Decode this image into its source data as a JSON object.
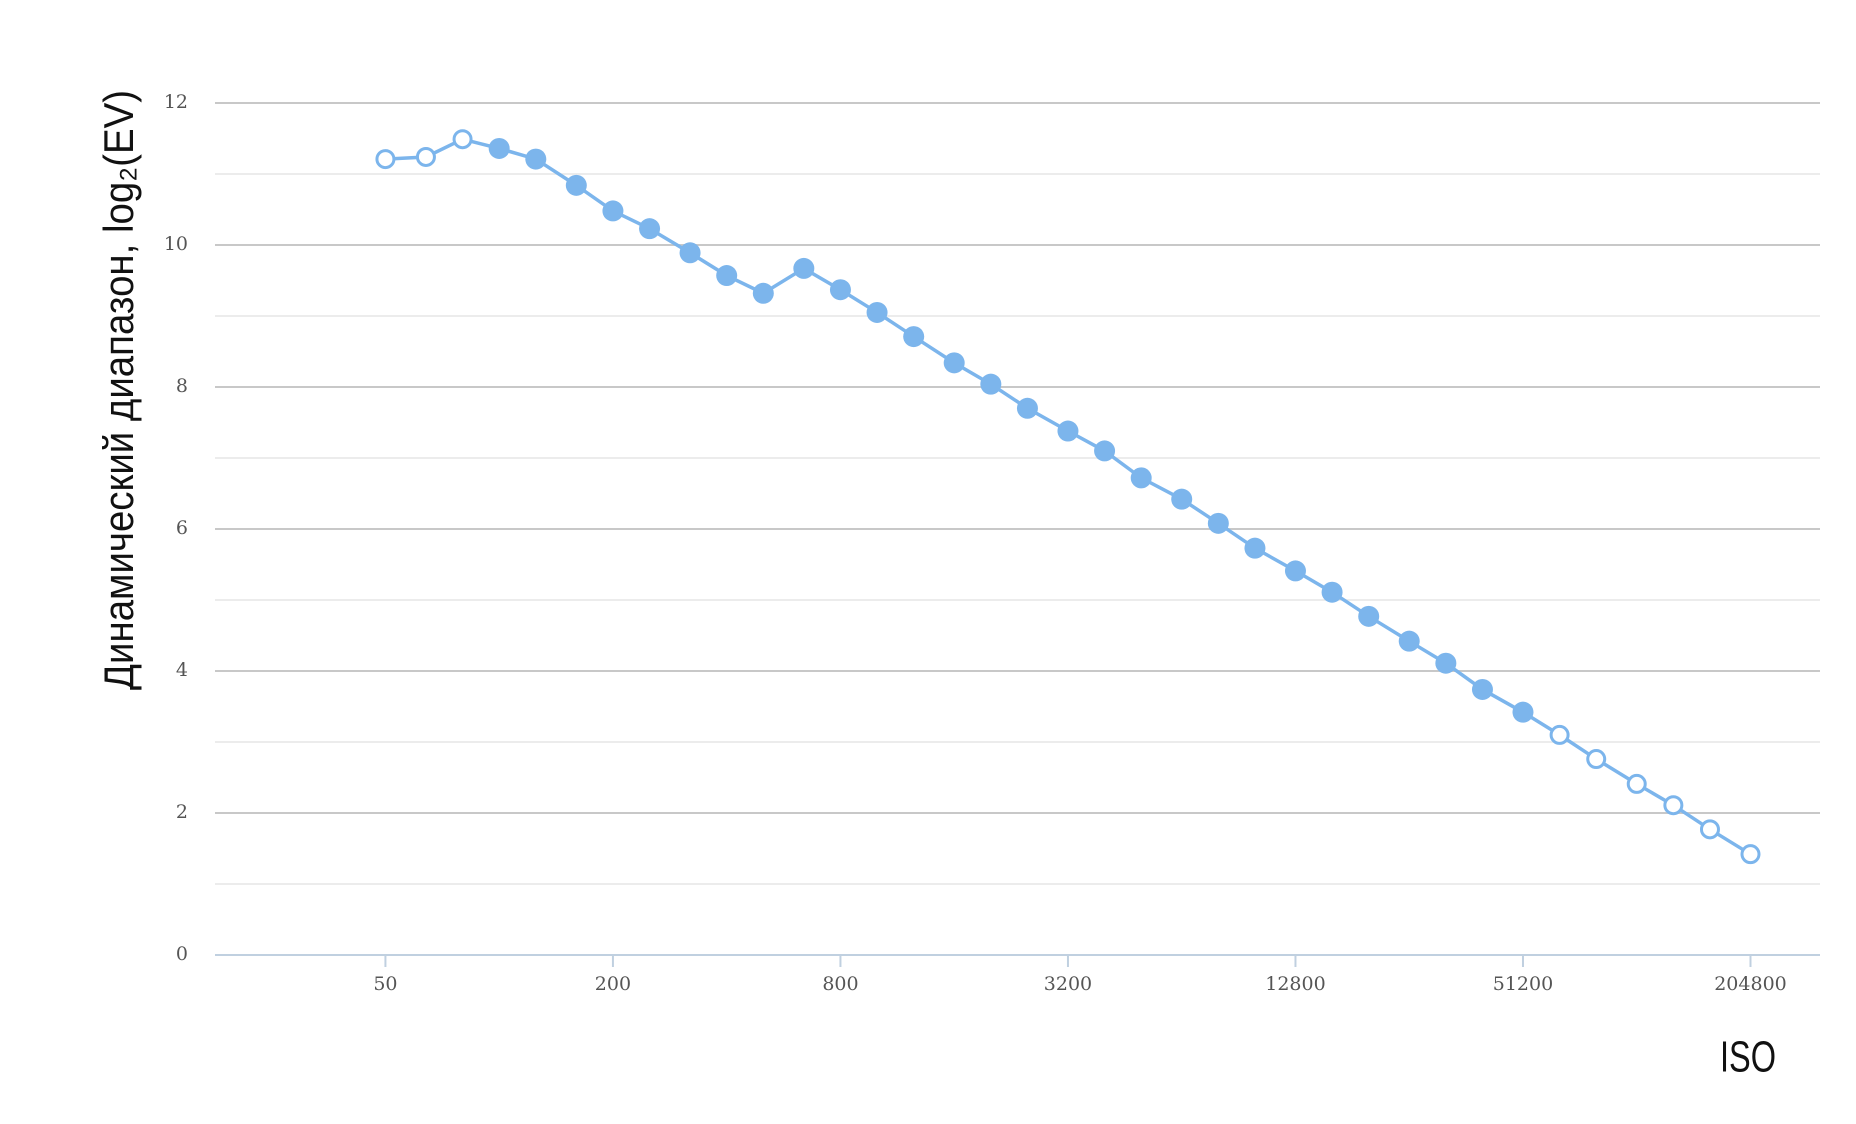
{
  "chart_data": {
    "type": "line",
    "y_label": "Динамический диапазон, log₂(EV)",
    "x_label": "ISO",
    "x": [
      50,
      64,
      80,
      100,
      125,
      160,
      200,
      250,
      320,
      400,
      500,
      640,
      800,
      1000,
      1250,
      1600,
      2000,
      2500,
      3200,
      4000,
      5000,
      6400,
      8000,
      10000,
      12800,
      16000,
      20000,
      25600,
      32000,
      40000,
      51200,
      64000,
      80000,
      102400,
      128000,
      160000,
      204800
    ],
    "series": [
      {
        "color": "#7cb5ec",
        "values": [
          11.21,
          11.24,
          11.49,
          11.36,
          11.21,
          10.84,
          10.48,
          10.23,
          9.89,
          9.57,
          9.32,
          9.67,
          9.37,
          9.05,
          8.71,
          8.34,
          8.04,
          7.7,
          7.38,
          7.1,
          6.72,
          6.42,
          6.08,
          5.73,
          5.41,
          5.11,
          4.77,
          4.42,
          4.11,
          3.74,
          3.42,
          3.1,
          2.76,
          2.41,
          2.11,
          1.77,
          1.42
        ],
        "open_markers": [
          true,
          true,
          true,
          false,
          false,
          false,
          false,
          false,
          false,
          false,
          false,
          false,
          false,
          false,
          false,
          false,
          false,
          false,
          false,
          false,
          false,
          false,
          false,
          false,
          false,
          false,
          false,
          false,
          false,
          false,
          false,
          true,
          true,
          true,
          true,
          true,
          true
        ]
      }
    ],
    "xscale": "log",
    "xlim": [
      17.7,
      312800
    ],
    "xticks": [
      50,
      200,
      800,
      3200,
      12800,
      51200,
      204800
    ],
    "ylim": [
      0,
      12
    ],
    "yticks": [
      0,
      2,
      4,
      6,
      8,
      10,
      12
    ],
    "minor_yticks": [
      1,
      3,
      5,
      7,
      9,
      11
    ],
    "grid": true
  }
}
